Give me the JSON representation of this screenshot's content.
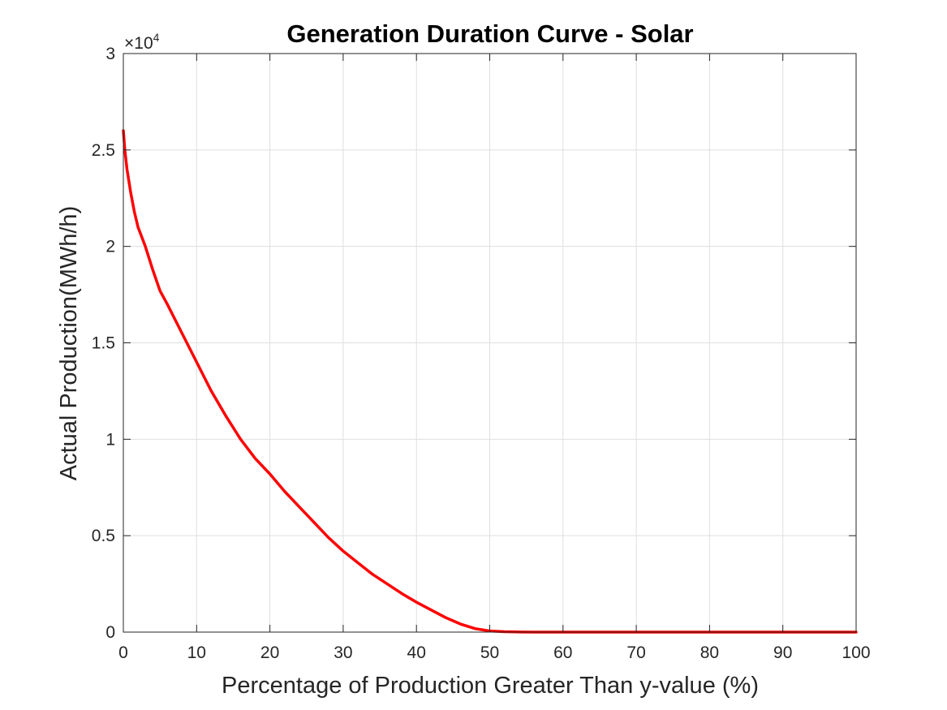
{
  "chart_data": {
    "type": "line",
    "title": "Generation Duration Curve - Solar",
    "xlabel": "Percentage of Production Greater Than y-value (%)",
    "ylabel": "Actual Production(MWh/h)",
    "xlim": [
      0,
      100
    ],
    "ylim": [
      0,
      30000
    ],
    "y_exponent_label": "×10",
    "y_exponent_power": "4",
    "x_ticks": [
      0,
      10,
      20,
      30,
      40,
      50,
      60,
      70,
      80,
      90,
      100
    ],
    "x_tick_labels": [
      "0",
      "10",
      "20",
      "30",
      "40",
      "50",
      "60",
      "70",
      "80",
      "90",
      "100"
    ],
    "y_ticks": [
      0,
      5000,
      10000,
      15000,
      20000,
      25000,
      30000
    ],
    "y_tick_labels": [
      "0",
      "0.5",
      "1",
      "1.5",
      "2",
      "2.5",
      "3"
    ],
    "grid": true,
    "box": true,
    "series": [
      {
        "color": "#ff0000",
        "x": [
          0,
          0.2,
          0.5,
          1,
          1.5,
          2,
          3,
          4,
          5,
          6,
          8,
          10,
          12,
          14,
          16,
          18,
          20,
          22,
          24,
          26,
          28,
          30,
          32,
          34,
          36,
          38,
          40,
          42,
          44,
          46,
          48,
          50,
          52,
          54,
          56,
          58,
          60,
          70,
          80,
          90,
          100
        ],
        "y": [
          26000,
          25000,
          24000,
          22800,
          21800,
          21000,
          20000,
          18800,
          17700,
          17000,
          15500,
          14000,
          12500,
          11200,
          10000,
          9000,
          8200,
          7300,
          6500,
          5700,
          4900,
          4200,
          3600,
          3000,
          2500,
          2000,
          1550,
          1150,
          750,
          420,
          180,
          60,
          20,
          5,
          0,
          0,
          0,
          0,
          0,
          0,
          0
        ]
      }
    ]
  }
}
